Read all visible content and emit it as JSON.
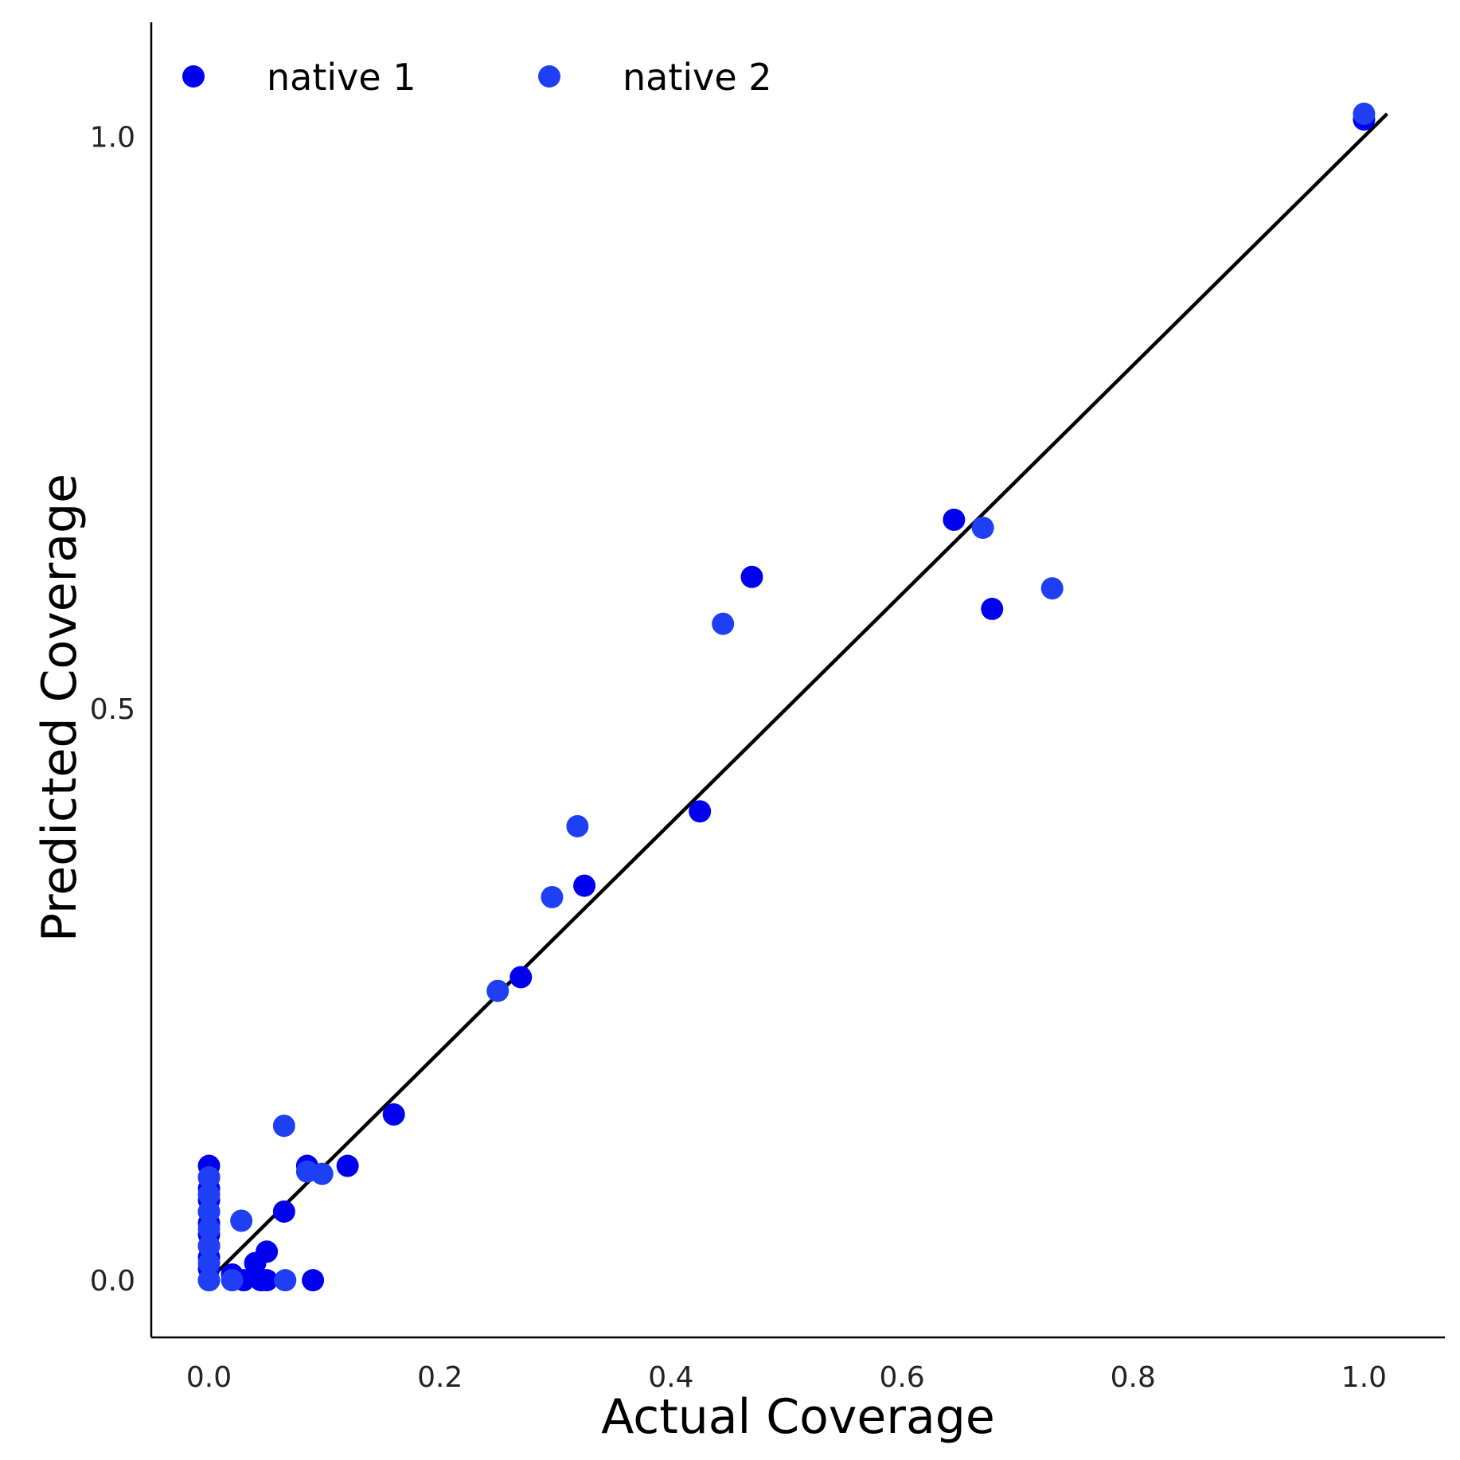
{
  "chart_data": {
    "type": "scatter",
    "xlabel": "Actual Coverage",
    "ylabel": "Predicted Coverage",
    "xlim": [
      -0.05,
      1.07
    ],
    "ylim": [
      -0.05,
      1.1
    ],
    "xticks": [
      0.0,
      0.2,
      0.4,
      0.6,
      0.8,
      1.0
    ],
    "yticks": [
      0.0,
      0.5,
      1.0
    ],
    "xtick_labels": [
      "0.0",
      "0.2",
      "0.4",
      "0.6",
      "0.8",
      "1.0"
    ],
    "ytick_labels": [
      "0.0",
      "0.5",
      "1.0"
    ],
    "grid": false,
    "legend_position": "top-left",
    "reference_line": {
      "x": [
        0.0,
        1.02
      ],
      "y": [
        0.0,
        1.02
      ],
      "color": "#000000"
    },
    "series": [
      {
        "name": "native 1",
        "color": "#0000ee",
        "points": [
          [
            0.0,
            0.0
          ],
          [
            0.0,
            0.01
          ],
          [
            0.0,
            0.02
          ],
          [
            0.0,
            0.03
          ],
          [
            0.0,
            0.04
          ],
          [
            0.0,
            0.05
          ],
          [
            0.0,
            0.06
          ],
          [
            0.0,
            0.07
          ],
          [
            0.0,
            0.08
          ],
          [
            0.0,
            0.09
          ],
          [
            0.0,
            0.1
          ],
          [
            0.02,
            0.005
          ],
          [
            0.03,
            0.0
          ],
          [
            0.045,
            0.0
          ],
          [
            0.04,
            0.015
          ],
          [
            0.05,
            0.0
          ],
          [
            0.05,
            0.025
          ],
          [
            0.09,
            0.0
          ],
          [
            0.065,
            0.06
          ],
          [
            0.085,
            0.1
          ],
          [
            0.12,
            0.1
          ],
          [
            0.16,
            0.145
          ],
          [
            0.27,
            0.265
          ],
          [
            0.325,
            0.345
          ],
          [
            0.425,
            0.41
          ],
          [
            0.47,
            0.615
          ],
          [
            0.645,
            0.665
          ],
          [
            0.678,
            0.587
          ],
          [
            1.0,
            1.015
          ]
        ]
      },
      {
        "name": "native 2",
        "color": "#1f3ff5",
        "points": [
          [
            0.0,
            0.0
          ],
          [
            0.0,
            0.015
          ],
          [
            0.0,
            0.03
          ],
          [
            0.0,
            0.045
          ],
          [
            0.0,
            0.06
          ],
          [
            0.0,
            0.075
          ],
          [
            0.0,
            0.09
          ],
          [
            0.02,
            0.0
          ],
          [
            0.028,
            0.052
          ],
          [
            0.066,
            0.0
          ],
          [
            0.065,
            0.135
          ],
          [
            0.085,
            0.095
          ],
          [
            0.098,
            0.093
          ],
          [
            0.25,
            0.253
          ],
          [
            0.297,
            0.335
          ],
          [
            0.319,
            0.397
          ],
          [
            0.445,
            0.574
          ],
          [
            0.67,
            0.658
          ],
          [
            0.73,
            0.605
          ],
          [
            1.0,
            1.02
          ]
        ]
      }
    ]
  }
}
